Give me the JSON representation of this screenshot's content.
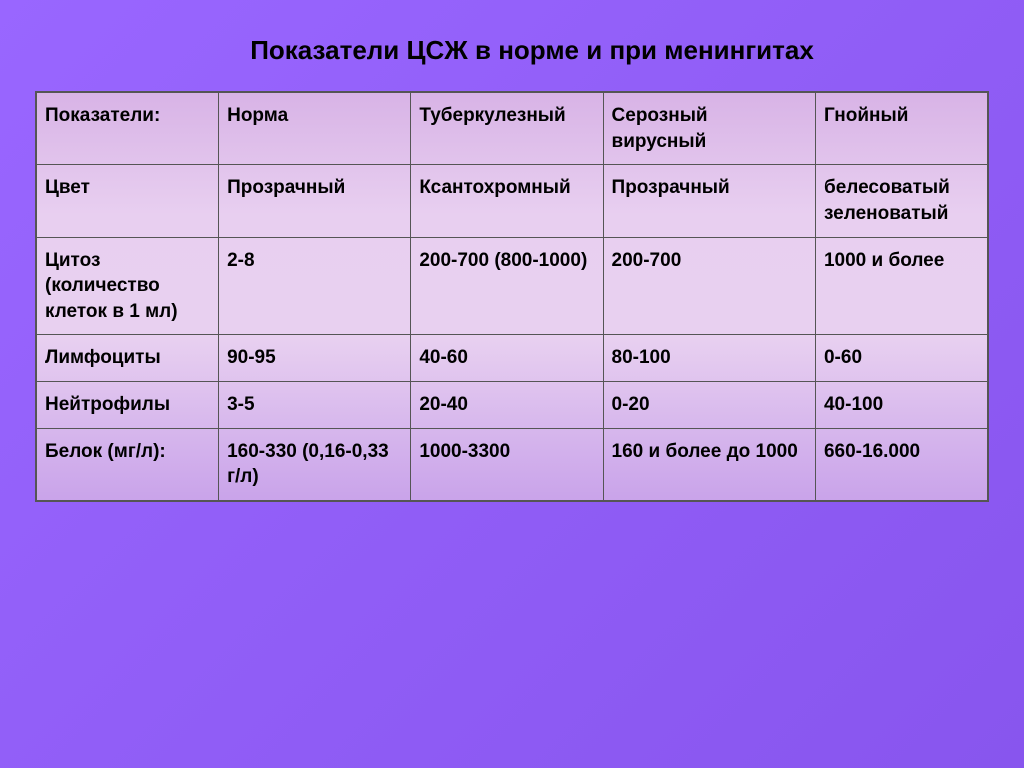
{
  "title": "Показатели ЦСЖ в норме и при менингитах",
  "table": {
    "headers": [
      "Показатели:",
      "Норма",
      "Туберкулезный",
      "Серозный вирусный",
      "Гнойный"
    ],
    "rows": [
      [
        "Цвет",
        "Прозрачный",
        "Ксантохромный",
        "Прозрачный",
        "белесоватый зеленоватый"
      ],
      [
        "Цитоз (количество клеток в 1 мл)",
        "2-8",
        " 200-700 (800-1000)",
        "200-700",
        "1000 и более"
      ],
      [
        "Лимфоциты",
        " 90-95",
        " 40-60",
        "80-100",
        "0-60"
      ],
      [
        "Нейтрофилы",
        "3-5",
        "20-40",
        " 0-20",
        "40-100"
      ],
      [
        "Белок (мг/л):",
        " 160-330 (0,16-0,33 г/л)",
        "1000-3300",
        "160 и более до 1000",
        "660-16.000"
      ]
    ]
  },
  "styling": {
    "background_gradient": [
      "#9966ff",
      "#8855ee"
    ],
    "table_gradient": [
      "#d8b3e6",
      "#e8cff0",
      "#e8d0f0",
      "#c9a3ea"
    ],
    "border_color": "#555555",
    "text_color": "#000000",
    "title_fontsize": 26,
    "cell_fontsize": 19,
    "font_family": "Arial",
    "column_widths": [
      "18%",
      "19%",
      "19%",
      "21%",
      "17%"
    ]
  }
}
